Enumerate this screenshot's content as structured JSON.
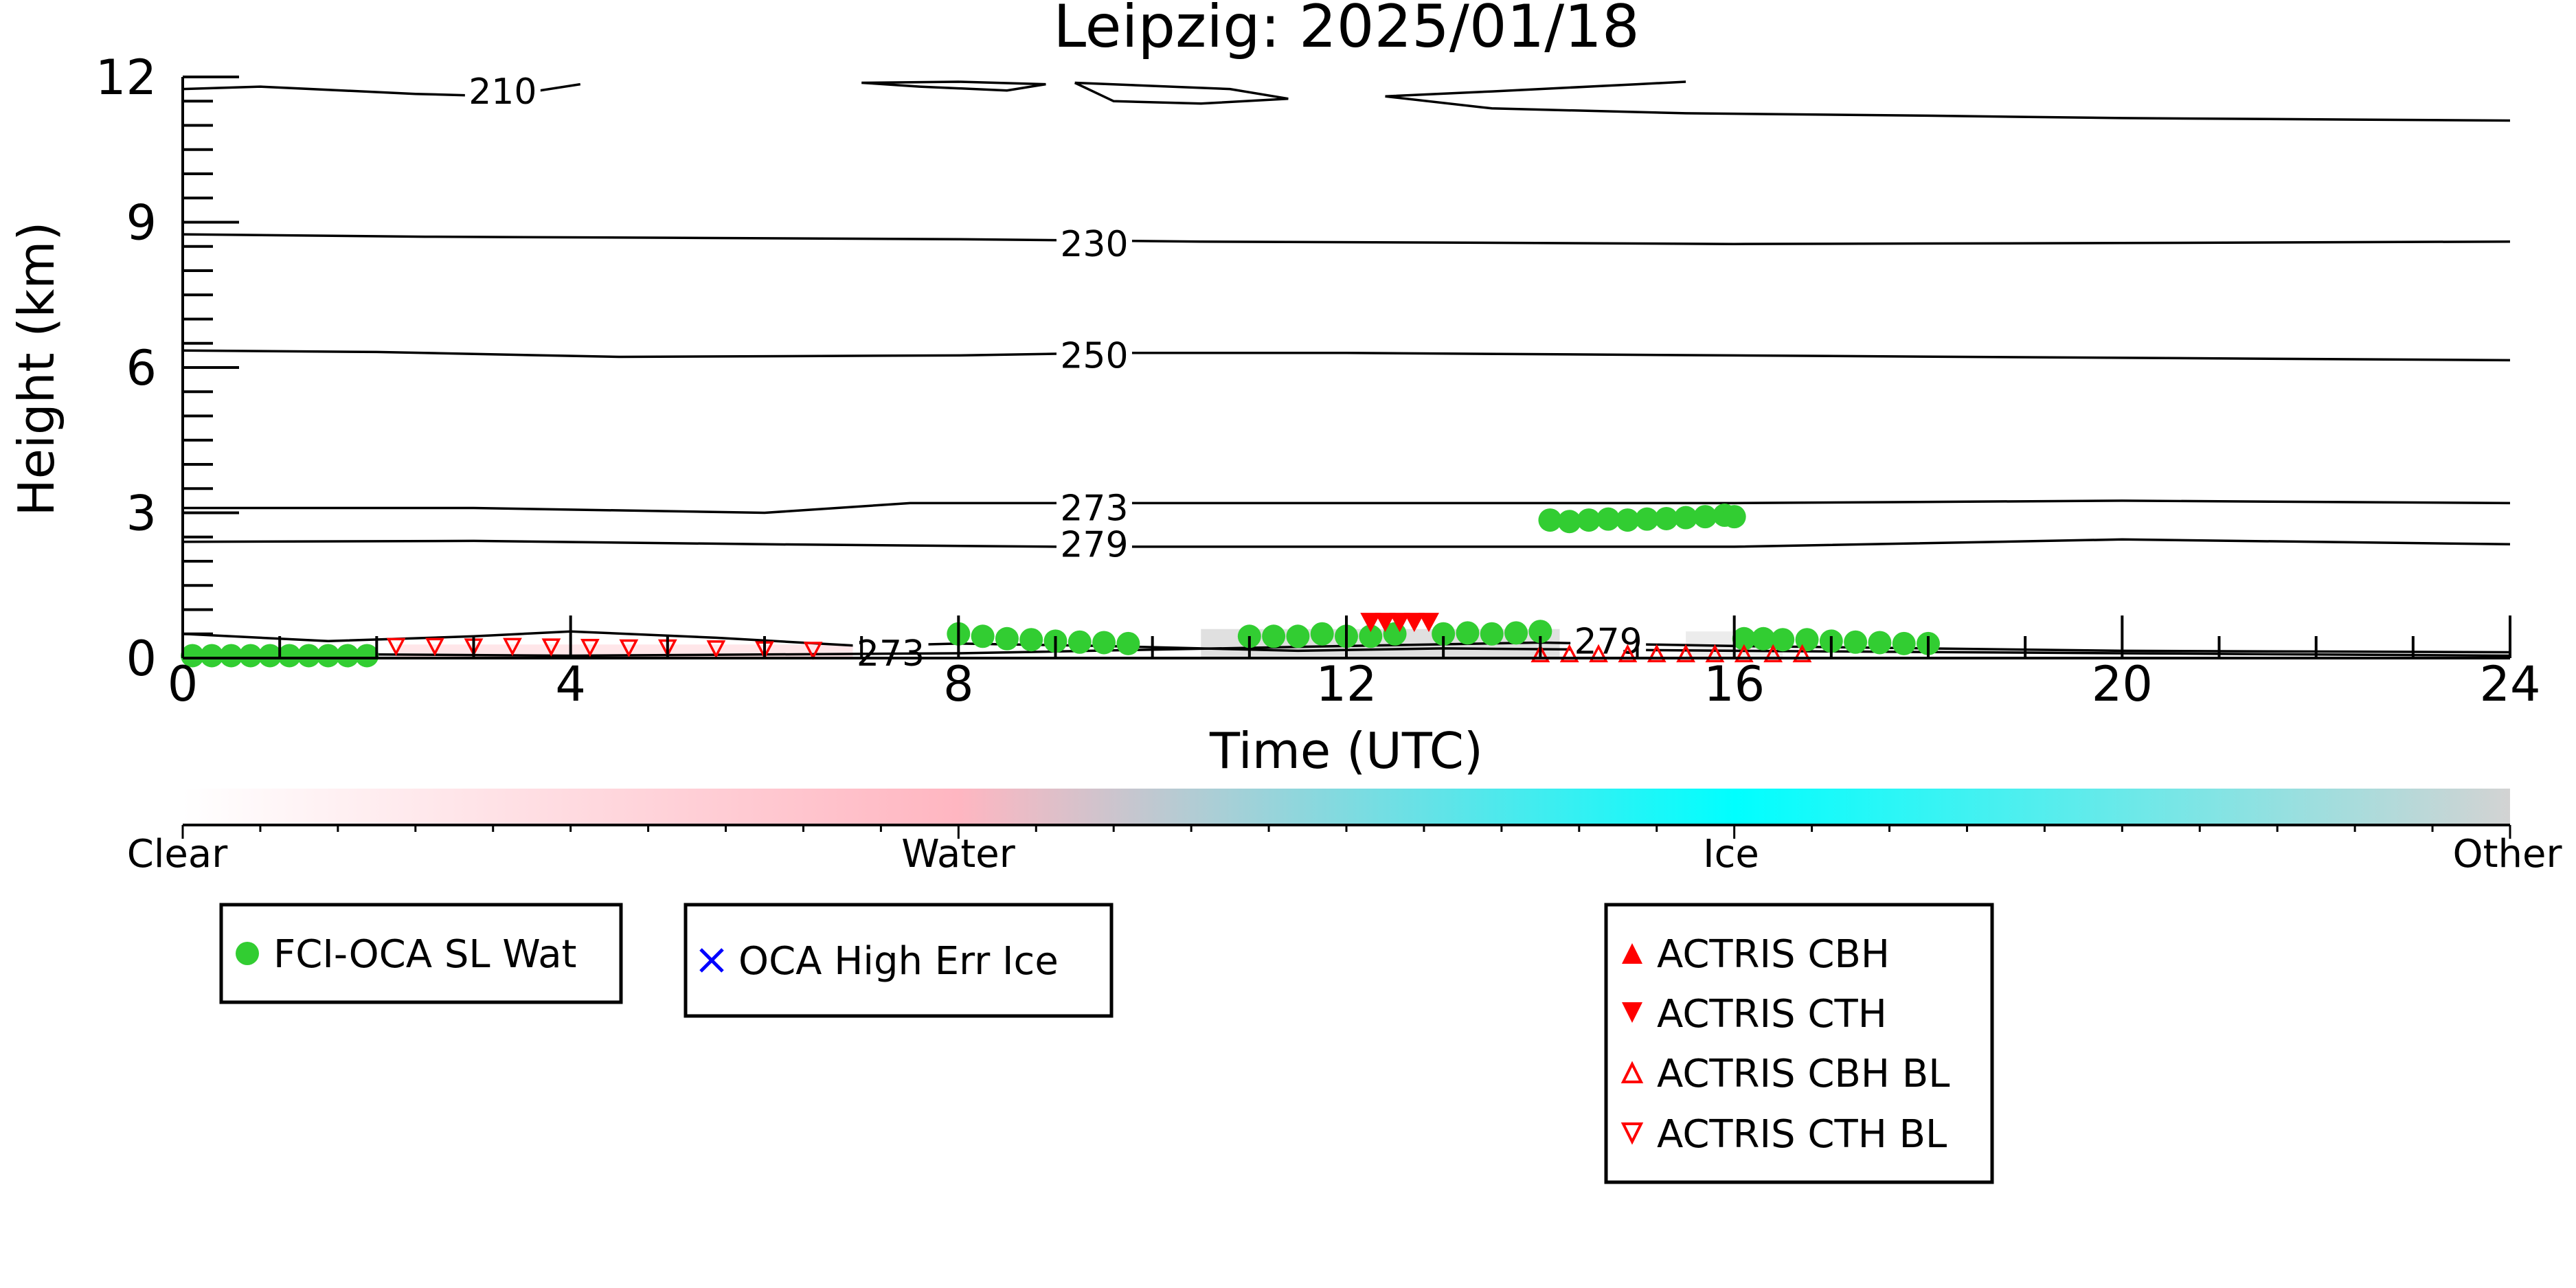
{
  "chart_data": {
    "type": "scatter",
    "title": "Leipzig: 2025/01/18",
    "xlabel": "Time (UTC)",
    "ylabel": "Height (km)",
    "xlim": [
      0,
      24
    ],
    "ylim": [
      0,
      12
    ],
    "x_ticks": [
      "0",
      "4",
      "8",
      "12",
      "16",
      "20",
      "24"
    ],
    "y_ticks": [
      "0",
      "3",
      "6",
      "9",
      "12"
    ],
    "grid": false,
    "contours": [
      {
        "label": "210",
        "label_at": [
          3.3,
          11.7
        ],
        "segments": [
          [
            [
              0,
              11.75
            ],
            [
              0.8,
              11.8
            ],
            [
              2.4,
              11.65
            ],
            [
              3.3,
              11.6
            ],
            [
              4.1,
              11.85
            ]
          ],
          [
            [
              7.0,
              11.88
            ],
            [
              7.6,
              11.8
            ],
            [
              8.5,
              11.72
            ],
            [
              8.9,
              11.85
            ],
            [
              8.0,
              11.9
            ],
            [
              7.0,
              11.88
            ]
          ],
          [
            [
              9.2,
              11.88
            ],
            [
              9.6,
              11.5
            ],
            [
              10.5,
              11.45
            ],
            [
              11.4,
              11.55
            ],
            [
              10.8,
              11.75
            ],
            [
              9.2,
              11.88
            ]
          ],
          [
            [
              12.4,
              11.6
            ],
            [
              13.5,
              11.7
            ],
            [
              15.0,
              11.85
            ],
            [
              15.5,
              11.9
            ]
          ],
          [
            [
              12.4,
              11.6
            ],
            [
              13.5,
              11.35
            ],
            [
              15.5,
              11.25
            ],
            [
              18.0,
              11.2
            ],
            [
              20.0,
              11.15
            ],
            [
              24.0,
              11.1
            ]
          ]
        ]
      },
      {
        "label": "230",
        "label_at": [
          9.4,
          8.55
        ],
        "segments": [
          [
            [
              0,
              8.75
            ],
            [
              2.5,
              8.7
            ],
            [
              5.0,
              8.68
            ],
            [
              8.0,
              8.65
            ],
            [
              10.5,
              8.6
            ],
            [
              13.0,
              8.58
            ],
            [
              16.0,
              8.55
            ],
            [
              20.0,
              8.57
            ],
            [
              24.0,
              8.6
            ]
          ]
        ]
      },
      {
        "label": "250",
        "label_at": [
          9.4,
          6.25
        ],
        "segments": [
          [
            [
              0,
              6.35
            ],
            [
              2.0,
              6.32
            ],
            [
              4.5,
              6.22
            ],
            [
              8.0,
              6.25
            ],
            [
              9.5,
              6.3
            ],
            [
              12.0,
              6.3
            ],
            [
              16.0,
              6.25
            ],
            [
              20.0,
              6.2
            ],
            [
              24.0,
              6.15
            ]
          ]
        ]
      },
      {
        "label": "273",
        "label_at": [
          9.4,
          3.1
        ],
        "segments": [
          [
            [
              0,
              3.1
            ],
            [
              3.0,
              3.1
            ],
            [
              6.0,
              3.0
            ],
            [
              7.5,
              3.2
            ],
            [
              9.5,
              3.2
            ],
            [
              12.0,
              3.2
            ],
            [
              16.0,
              3.2
            ],
            [
              20.0,
              3.25
            ],
            [
              24.0,
              3.2
            ]
          ]
        ]
      },
      {
        "label": "279",
        "label_at": [
          9.4,
          2.35
        ],
        "segments": [
          [
            [
              0,
              2.4
            ],
            [
              3.0,
              2.42
            ],
            [
              6.0,
              2.35
            ],
            [
              9.0,
              2.3
            ],
            [
              12.0,
              2.3
            ],
            [
              16.0,
              2.3
            ],
            [
              20.0,
              2.45
            ],
            [
              24.0,
              2.35
            ]
          ]
        ]
      },
      {
        "label": "273",
        "label_at": [
          7.3,
          0.1
        ],
        "segments": [
          [
            [
              0,
              0.5
            ],
            [
              1.5,
              0.35
            ],
            [
              3.0,
              0.45
            ],
            [
              4.0,
              0.55
            ],
            [
              5.5,
              0.42
            ],
            [
              7.0,
              0.25
            ],
            [
              8.0,
              0.3
            ],
            [
              9.5,
              0.25
            ],
            [
              11.5,
              0.15
            ],
            [
              13.0,
              0.2
            ],
            [
              16.0,
              0.15
            ],
            [
              20.0,
              0.1
            ],
            [
              24.0,
              0.05
            ]
          ]
        ]
      },
      {
        "label": "279",
        "label_at": [
          14.7,
          0.35
        ],
        "segments": [
          [
            [
              0,
              0.1
            ],
            [
              4.0,
              0.05
            ],
            [
              8.0,
              0.1
            ],
            [
              12.0,
              0.25
            ],
            [
              14.0,
              0.32
            ],
            [
              16.0,
              0.25
            ],
            [
              20.0,
              0.15
            ],
            [
              24.0,
              0.12
            ]
          ]
        ]
      }
    ],
    "cloud_phase_colorbar": {
      "labels": [
        "Clear",
        "Water",
        "Ice",
        "Other"
      ],
      "colors": [
        "#ffffff",
        "#ffb6c1",
        "#00ffff",
        "#d3d3d3"
      ]
    },
    "series": [
      {
        "name": "FCI-OCA SL Wat",
        "marker": "circle",
        "color": "#32cd32",
        "points": [
          [
            0.1,
            0.05
          ],
          [
            0.3,
            0.05
          ],
          [
            0.5,
            0.05
          ],
          [
            0.7,
            0.05
          ],
          [
            0.9,
            0.05
          ],
          [
            1.1,
            0.05
          ],
          [
            1.3,
            0.05
          ],
          [
            1.5,
            0.05
          ],
          [
            1.7,
            0.05
          ],
          [
            1.9,
            0.05
          ],
          [
            8.0,
            0.5
          ],
          [
            8.25,
            0.45
          ],
          [
            8.5,
            0.4
          ],
          [
            8.75,
            0.38
          ],
          [
            9.0,
            0.35
          ],
          [
            9.25,
            0.33
          ],
          [
            9.5,
            0.32
          ],
          [
            9.75,
            0.3
          ],
          [
            11.0,
            0.45
          ],
          [
            11.25,
            0.45
          ],
          [
            11.5,
            0.45
          ],
          [
            11.75,
            0.5
          ],
          [
            12.0,
            0.45
          ],
          [
            12.25,
            0.45
          ],
          [
            12.5,
            0.5
          ],
          [
            13.0,
            0.5
          ],
          [
            13.25,
            0.52
          ],
          [
            13.5,
            0.5
          ],
          [
            13.75,
            0.52
          ],
          [
            14.0,
            0.55
          ],
          [
            14.1,
            2.85
          ],
          [
            14.3,
            2.82
          ],
          [
            14.5,
            2.85
          ],
          [
            14.7,
            2.87
          ],
          [
            14.9,
            2.85
          ],
          [
            15.1,
            2.87
          ],
          [
            15.3,
            2.88
          ],
          [
            15.5,
            2.9
          ],
          [
            15.7,
            2.92
          ],
          [
            15.9,
            2.95
          ],
          [
            16.0,
            2.92
          ],
          [
            16.1,
            0.4
          ],
          [
            16.3,
            0.4
          ],
          [
            16.5,
            0.38
          ],
          [
            16.75,
            0.38
          ],
          [
            17.0,
            0.35
          ],
          [
            17.25,
            0.33
          ],
          [
            17.5,
            0.32
          ],
          [
            17.75,
            0.3
          ],
          [
            18.0,
            0.3
          ]
        ]
      },
      {
        "name": "OCA High Err Ice",
        "marker": "x",
        "color": "#0000ff",
        "points": []
      },
      {
        "name": "ACTRIS CBH",
        "marker": "triangle-up",
        "color": "#ff0000",
        "points": []
      },
      {
        "name": "ACTRIS CTH",
        "marker": "triangle-down",
        "color": "#ff0000",
        "points": [
          [
            12.25,
            0.75
          ],
          [
            12.4,
            0.75
          ],
          [
            12.55,
            0.75
          ],
          [
            12.7,
            0.75
          ],
          [
            12.85,
            0.75
          ]
        ]
      },
      {
        "name": "ACTRIS CBH BL",
        "marker": "triangle-up-open",
        "color": "#ff0000",
        "points": [
          [
            14.0,
            0.08
          ],
          [
            14.3,
            0.08
          ],
          [
            14.6,
            0.08
          ],
          [
            14.9,
            0.08
          ],
          [
            15.2,
            0.08
          ],
          [
            15.5,
            0.08
          ],
          [
            15.8,
            0.08
          ],
          [
            16.1,
            0.08
          ],
          [
            16.4,
            0.08
          ],
          [
            16.7,
            0.08
          ]
        ]
      },
      {
        "name": "ACTRIS CTH BL",
        "marker": "triangle-down-open",
        "color": "#ff0000",
        "points": [
          [
            2.2,
            0.25
          ],
          [
            2.6,
            0.25
          ],
          [
            3.0,
            0.24
          ],
          [
            3.4,
            0.25
          ],
          [
            3.8,
            0.24
          ],
          [
            4.2,
            0.23
          ],
          [
            4.6,
            0.22
          ],
          [
            5.0,
            0.22
          ],
          [
            5.5,
            0.2
          ],
          [
            6.0,
            0.18
          ],
          [
            6.5,
            0.17
          ]
        ]
      }
    ],
    "legends": [
      {
        "entries": [
          "FCI-OCA SL Wat"
        ]
      },
      {
        "entries": [
          "OCA High Err Ice"
        ]
      },
      {
        "entries": [
          "ACTRIS CBH",
          "ACTRIS CTH",
          "ACTRIS CBH BL",
          "ACTRIS CTH BL"
        ]
      }
    ]
  }
}
